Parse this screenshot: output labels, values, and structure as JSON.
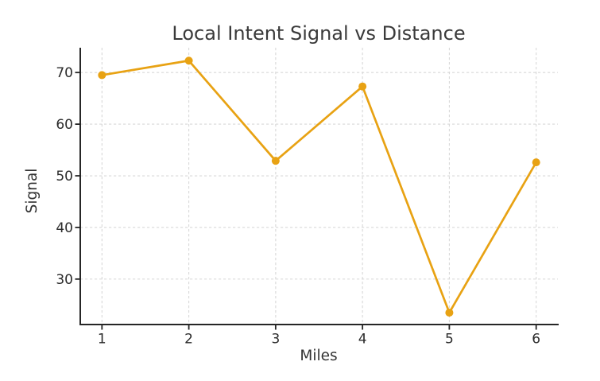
{
  "figure": {
    "background_color": "#ffffff"
  },
  "chart_data": {
    "type": "line",
    "title": "Local Intent Signal vs Distance",
    "xlabel": "Miles",
    "ylabel": "Signal",
    "x": [
      1,
      2,
      3,
      4,
      5,
      6
    ],
    "series": [
      {
        "name": "Signal",
        "values": [
          69.5,
          72.3,
          52.9,
          67.3,
          23.5,
          52.6
        ]
      }
    ],
    "x_ticks": [
      "1",
      "2",
      "3",
      "4",
      "5",
      "6"
    ],
    "x_tick_values": [
      1,
      2,
      3,
      4,
      5,
      6
    ],
    "y_ticks": [
      "30",
      "40",
      "50",
      "60",
      "70"
    ],
    "y_tick_values": [
      30,
      40,
      50,
      60,
      70
    ],
    "xlim": [
      0.75,
      6.25
    ],
    "ylim": [
      21.2,
      74.8
    ],
    "grid": true,
    "grid_line_style": "dashed",
    "legend_position": "none",
    "colors": {
      "line": "#E8A213",
      "marker": "#E8A213",
      "grid": "#d8d8d8",
      "spine": "#262626",
      "tick": "#262626",
      "tick_label": "#2b2b2b",
      "title": "#3a3a3a",
      "axis_label": "#333333"
    }
  }
}
